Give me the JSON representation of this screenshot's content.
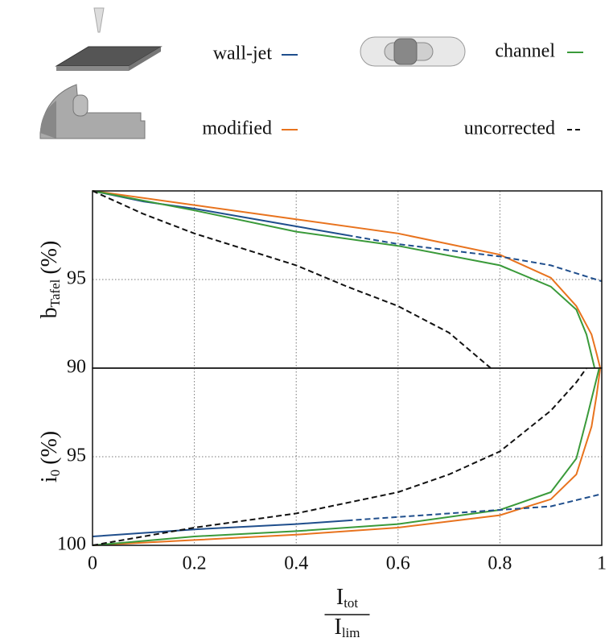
{
  "chart_data": [
    {
      "type": "line",
      "y_label": {
        "main": "b",
        "sub": "Tafel",
        "unit": "(%)"
      },
      "ylim": [
        90,
        100
      ],
      "yticks": [
        90,
        95
      ],
      "xlim": [
        0,
        1
      ],
      "xticks": [
        0,
        0.2,
        0.4,
        0.6,
        0.8,
        1
      ],
      "show_xtick_labels": false,
      "grid": true,
      "series": [
        {
          "name": "wall-jet",
          "color": "#1f4e8c",
          "line_style": "solid",
          "x": [
            0,
            0.1,
            0.2,
            0.3,
            0.4,
            0.5
          ],
          "values": [
            100,
            99.4,
            99.0,
            98.5,
            98.0,
            97.5
          ]
        },
        {
          "name": "modified",
          "color": "#e8731e",
          "line_style": "solid",
          "x": [
            0,
            0.2,
            0.4,
            0.6,
            0.8,
            0.9,
            0.95,
            0.98,
            0.99,
            0.997
          ],
          "values": [
            100,
            99.2,
            98.4,
            97.6,
            96.4,
            95.1,
            93.5,
            91.9,
            90.8,
            90
          ]
        },
        {
          "name": "channel",
          "color": "#3a9a3a",
          "line_style": "solid",
          "x": [
            0,
            0.2,
            0.4,
            0.6,
            0.8,
            0.9,
            0.95,
            0.97,
            0.986
          ],
          "values": [
            100,
            98.9,
            97.7,
            96.9,
            95.8,
            94.6,
            93.3,
            91.9,
            90
          ]
        },
        {
          "name": "uncorrected",
          "color": "#111111",
          "line_style": "dashed",
          "x": [
            0,
            0.1,
            0.2,
            0.3,
            0.4,
            0.5,
            0.6,
            0.7,
            0.782
          ],
          "values": [
            100,
            98.7,
            97.6,
            96.7,
            95.8,
            94.6,
            93.5,
            92.0,
            90
          ]
        },
        {
          "name": "wall-jet",
          "color": "#1f4e8c",
          "line_style": "dashed",
          "x": [
            0.5,
            0.6,
            0.8,
            0.9,
            1
          ],
          "values": [
            97.5,
            97.0,
            96.3,
            95.8,
            94.9
          ]
        }
      ]
    },
    {
      "type": "line",
      "y_label": {
        "main": "i",
        "sub": "0",
        "unit": "(%)"
      },
      "x_label": {
        "numerator": "I",
        "numerator_sub": "tot",
        "denominator": "I",
        "denominator_sub": "lim"
      },
      "ylim": [
        100,
        90
      ],
      "yticks": [
        95,
        100
      ],
      "xlim": [
        0,
        1
      ],
      "xticks": [
        0,
        0.2,
        0.4,
        0.6,
        0.8,
        1
      ],
      "show_xtick_labels": true,
      "grid": true,
      "series": [
        {
          "name": "wall-jet",
          "color": "#1f4e8c",
          "line_style": "solid",
          "x": [
            0,
            0.2,
            0.4,
            0.5
          ],
          "values": [
            99.5,
            99.1,
            98.8,
            98.6
          ]
        },
        {
          "name": "modified",
          "color": "#e8731e",
          "line_style": "solid",
          "x": [
            0,
            0.2,
            0.4,
            0.6,
            0.8,
            0.9,
            0.95,
            0.98,
            0.99,
            0.997
          ],
          "values": [
            100,
            99.7,
            99.4,
            99.0,
            98.3,
            97.4,
            96.0,
            93.3,
            91.5,
            90
          ]
        },
        {
          "name": "channel",
          "color": "#3a9a3a",
          "line_style": "solid",
          "x": [
            0,
            0.2,
            0.4,
            0.6,
            0.8,
            0.9,
            0.95,
            0.97,
            0.995
          ],
          "values": [
            100,
            99.5,
            99.2,
            98.8,
            98.0,
            97.0,
            95.1,
            92.9,
            90
          ]
        },
        {
          "name": "uncorrected",
          "color": "#111111",
          "line_style": "dashed",
          "x": [
            0,
            0.2,
            0.4,
            0.6,
            0.7,
            0.8,
            0.9,
            0.95,
            0.97
          ],
          "values": [
            100,
            99.0,
            98.2,
            97.0,
            96.0,
            94.7,
            92.4,
            90.8,
            90
          ]
        },
        {
          "name": "wall-jet",
          "color": "#1f4e8c",
          "line_style": "dashed",
          "x": [
            0.5,
            0.6,
            0.8,
            0.9,
            1
          ],
          "values": [
            98.6,
            98.4,
            98.0,
            97.8,
            97.1
          ]
        }
      ]
    }
  ]
}
